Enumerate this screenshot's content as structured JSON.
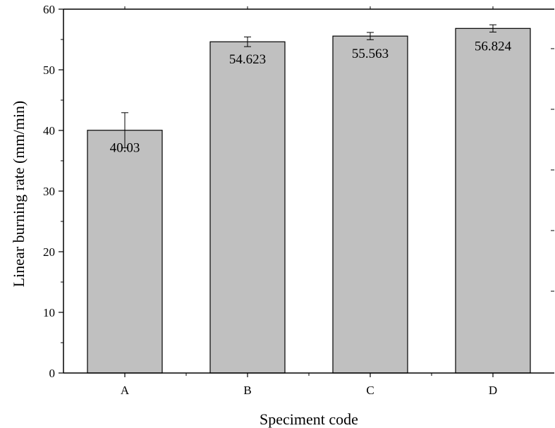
{
  "chart_data": {
    "type": "bar",
    "title": "",
    "xlabel": "Speciment code",
    "ylabel": "Linear burning rate (mm/min)",
    "categories": [
      "A",
      "B",
      "C",
      "D"
    ],
    "values": [
      40.03,
      54.623,
      55.563,
      56.824
    ],
    "value_labels": [
      "40.03",
      "54.623",
      "55.563",
      "56.824"
    ],
    "error": [
      2.9,
      0.8,
      0.6,
      0.6
    ],
    "ylim": [
      0,
      60
    ],
    "yticks": [
      0,
      10,
      20,
      30,
      40,
      50,
      60
    ],
    "ytick_labels": [
      "0",
      "10",
      "20",
      "30",
      "40",
      "50",
      "60"
    ],
    "grid": false,
    "legend": "none",
    "bar_color": "#c0c0c0",
    "edge_color": "#000000"
  }
}
